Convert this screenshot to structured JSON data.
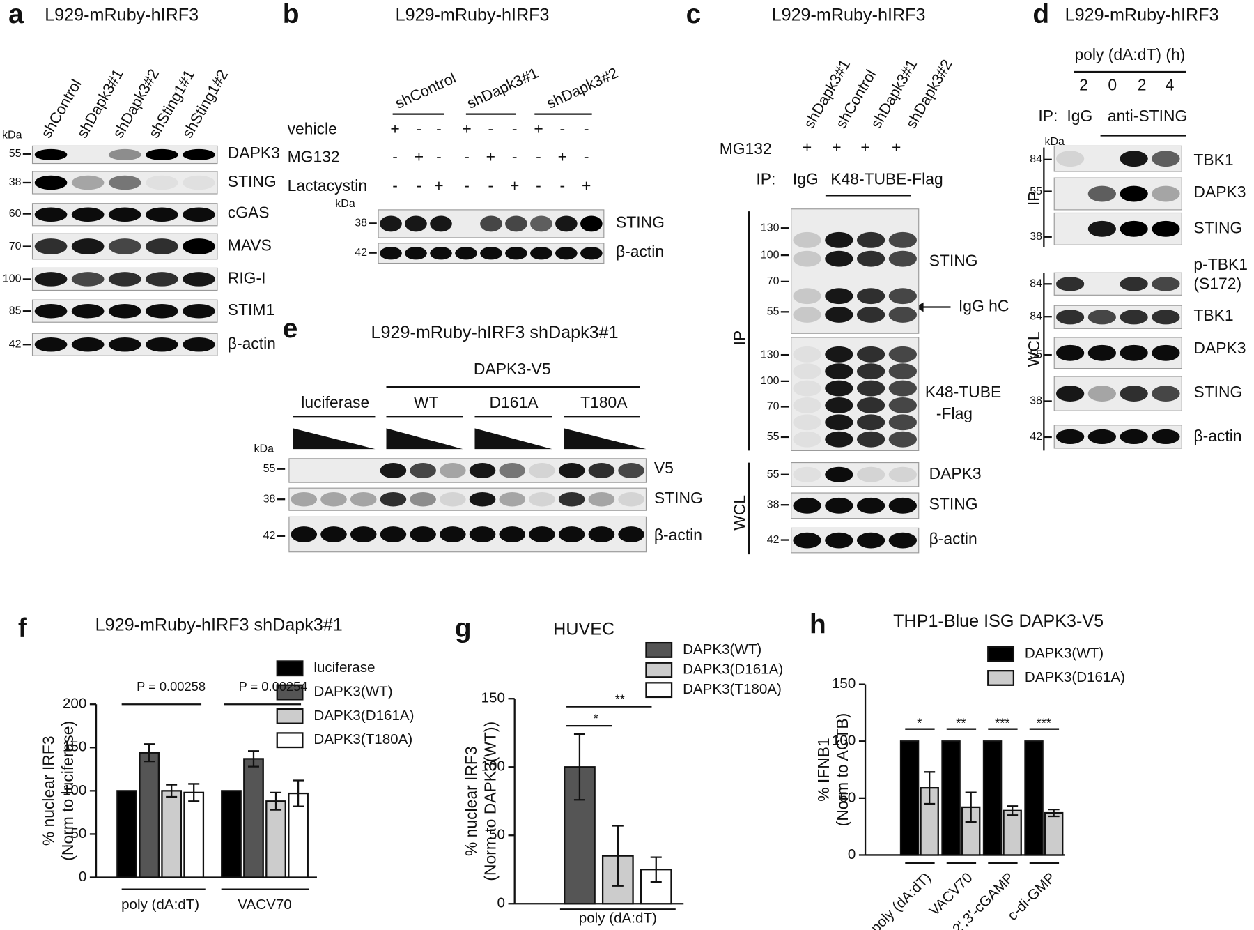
{
  "panels": [
    {
      "letter": "a",
      "title": "L929-mRuby-hIRF3",
      "lanes": [
        "shControl",
        "shDapk3#1",
        "shDapk3#2",
        "shSting1#1",
        "shSting1#2"
      ],
      "unit": "kDa",
      "markers": [
        "55",
        "38",
        "60",
        "70",
        "100",
        "85",
        "42"
      ],
      "proteins": [
        "DAPK3",
        "STING",
        "cGAS",
        "MAVS",
        "RIG-I",
        "STIM1",
        "β-actin"
      ]
    },
    {
      "letter": "b",
      "title": "L929-mRuby-hIRF3",
      "groups": [
        "shControl",
        "shDapk3#1",
        "shDapk3#2"
      ],
      "treatments": [
        {
          "name": "vehicle",
          "signs": [
            "+",
            "-",
            "-",
            "+",
            "-",
            "-",
            "+",
            "-",
            "-"
          ]
        },
        {
          "name": "MG132",
          "signs": [
            "-",
            "+",
            "-",
            "-",
            "+",
            "-",
            "-",
            "+",
            "-"
          ]
        },
        {
          "name": "Lactacystin",
          "signs": [
            "-",
            "-",
            "+",
            "-",
            "-",
            "+",
            "-",
            "-",
            "+"
          ]
        }
      ],
      "unit": "kDa",
      "markers": [
        "38",
        "42"
      ],
      "proteins": [
        "STING",
        "β-actin"
      ]
    },
    {
      "letter": "c",
      "title": "L929-mRuby-hIRF3",
      "lanes": [
        "shDapk3#1",
        "shControl",
        "shDapk3#1",
        "shDapk3#2"
      ],
      "treatment": "MG132",
      "signs": [
        "+",
        "+",
        "+",
        "+"
      ],
      "ip": "IP:",
      "ip_groups": [
        "IgG",
        "K48-TUBE-Flag"
      ],
      "sections": [
        "IP",
        "WCL"
      ],
      "markers": [
        "130",
        "100",
        "70",
        "55",
        "130",
        "100",
        "70",
        "55",
        "55",
        "38",
        "42"
      ],
      "proteins": [
        "STING",
        "IgG hC",
        "K48-TUBE",
        "-Flag",
        "DAPK3",
        "STING",
        "β-actin"
      ]
    },
    {
      "letter": "d",
      "title": "L929-mRuby-hIRF3",
      "treatment": "poly (dA:dT) (h)",
      "times": [
        "2",
        "0",
        "2",
        "4"
      ],
      "ip": "IP:",
      "ip_groups": [
        "IgG",
        "anti-STING"
      ],
      "unit": "kDa",
      "sections": [
        "IP",
        "WCL"
      ],
      "markers": [
        "84",
        "55",
        "38",
        "84",
        "84",
        "55",
        "38",
        "42"
      ],
      "proteins": [
        "TBK1",
        "DAPK3",
        "STING",
        "p-TBK1",
        "(S172)",
        "TBK1",
        "DAPK3",
        "STING",
        "β-actin"
      ]
    },
    {
      "letter": "e",
      "title": "L929-mRuby-hIRF3 shDapk3#1",
      "construct": "DAPK3-V5",
      "groups": [
        "luciferase",
        "WT",
        "D161A",
        "T180A"
      ],
      "unit": "kDa",
      "markers": [
        "55",
        "38",
        "42"
      ],
      "proteins": [
        "V5",
        "STING",
        "β-actin"
      ]
    }
  ],
  "chart_data": [
    {
      "type": "bar",
      "letter": "f",
      "title": "L929-mRuby-hIRF3 shDapk3#1",
      "ylabel": [
        "% nuclear IRF3",
        "(Norm to luciferase)"
      ],
      "categories": [
        "poly (dA:dT)",
        "VACV70"
      ],
      "series": [
        {
          "name": "luciferase",
          "color": "#000000",
          "values": [
            100,
            100
          ],
          "errors": [
            0,
            0
          ]
        },
        {
          "name": "DAPK3(WT)",
          "color": "#555555",
          "values": [
            144,
            137
          ],
          "errors": [
            10,
            9
          ]
        },
        {
          "name": "DAPK3(D161A)",
          "color": "#cccccc",
          "values": [
            100,
            88
          ],
          "errors": [
            7,
            10
          ]
        },
        {
          "name": "DAPK3(T180A)",
          "color": "#ffffff",
          "values": [
            98,
            97
          ],
          "errors": [
            10,
            15
          ]
        }
      ],
      "ylim": [
        0,
        200
      ],
      "yticks": [
        0,
        50,
        100,
        150,
        200
      ],
      "annotations": [
        "P = 0.00258",
        "P = 0.00254"
      ]
    },
    {
      "type": "bar",
      "letter": "g",
      "title": "HUVEC",
      "ylabel": [
        "% nuclear IRF3",
        "(Norm to DAPK3(WT))"
      ],
      "categories": [
        "poly (dA:dT)"
      ],
      "series": [
        {
          "name": "DAPK3(WT)",
          "color": "#555555",
          "values": [
            100
          ],
          "errors": [
            24
          ]
        },
        {
          "name": "DAPK3(D161A)",
          "color": "#cccccc",
          "values": [
            35
          ],
          "errors": [
            22
          ]
        },
        {
          "name": "DAPK3(T180A)",
          "color": "#ffffff",
          "values": [
            25
          ],
          "errors": [
            9
          ]
        }
      ],
      "ylim": [
        0,
        150
      ],
      "yticks": [
        0,
        50,
        100,
        150
      ],
      "annotations": [
        "*",
        "**"
      ]
    },
    {
      "type": "bar",
      "letter": "h",
      "title": "THP1-Blue ISG DAPK3-V5",
      "ylabel": [
        "% IFNB1",
        "(Norm to ACTB)"
      ],
      "categories": [
        "poly (dA:dT)",
        "VACV70",
        "2',3'-cGAMP",
        "c-di-GMP"
      ],
      "series": [
        {
          "name": "DAPK3(WT)",
          "color": "#000000",
          "values": [
            100,
            100,
            100,
            100
          ],
          "errors": [
            0,
            0,
            0,
            0
          ]
        },
        {
          "name": "DAPK3(D161A)",
          "color": "#cccccc",
          "values": [
            59,
            42,
            39,
            37
          ],
          "errors": [
            14,
            13,
            4,
            3
          ]
        }
      ],
      "ylim": [
        0,
        150
      ],
      "yticks": [
        0,
        50,
        100,
        150
      ],
      "annotations": [
        "*",
        "**",
        "***",
        "***"
      ]
    }
  ]
}
